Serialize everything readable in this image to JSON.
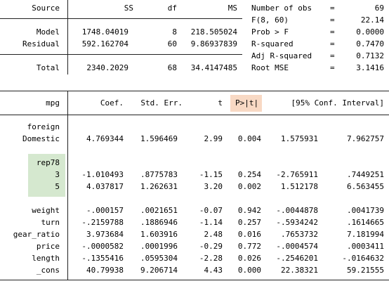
{
  "anova": {
    "headers": {
      "source": "Source",
      "ss": "SS",
      "df": "df",
      "ms": "MS"
    },
    "rows": [
      {
        "source": "Model",
        "ss": "1748.04019",
        "df": "8",
        "ms": "218.505024"
      },
      {
        "source": "Residual",
        "ss": "592.162704",
        "df": "60",
        "ms": "9.86937839"
      },
      {
        "source": "Total",
        "ss": "2340.2029",
        "df": "68",
        "ms": "34.4147485"
      }
    ]
  },
  "stats": [
    {
      "label": "Number of obs",
      "eq": "=",
      "value": "69"
    },
    {
      "label": "F(8, 60)",
      "eq": "=",
      "value": "22.14"
    },
    {
      "label": "Prob > F",
      "eq": "=",
      "value": "0.0000"
    },
    {
      "label": "R-squared",
      "eq": "=",
      "value": "0.7470"
    },
    {
      "label": "Adj R-squared",
      "eq": "=",
      "value": "0.7132"
    },
    {
      "label": "Root MSE",
      "eq": "=",
      "value": "3.1416"
    }
  ],
  "coef": {
    "headers": {
      "var": "mpg",
      "coef": "Coef.",
      "se": "Std. Err.",
      "t": "t",
      "p": "P>|t|",
      "ci": "[95% Conf. Interval]"
    },
    "foreign_group": "foreign",
    "rep78_group": "rep78",
    "rows": [
      {
        "name": "Domestic",
        "coef": "4.769344",
        "se": "1.596469",
        "t": "2.99",
        "p": "0.004",
        "lo": "1.575931",
        "hi": "7.962757"
      },
      {
        "name": "3",
        "coef": "-1.010493",
        "se": ".8775783",
        "t": "-1.15",
        "p": "0.254",
        "lo": "-2.765911",
        "hi": ".7449251"
      },
      {
        "name": "5",
        "coef": "4.037817",
        "se": "1.262631",
        "t": "3.20",
        "p": "0.002",
        "lo": "1.512178",
        "hi": "6.563455"
      },
      {
        "name": "weight",
        "coef": "-.000157",
        "se": ".0021651",
        "t": "-0.07",
        "p": "0.942",
        "lo": "-.0044878",
        "hi": ".0041739"
      },
      {
        "name": "turn",
        "coef": "-.2159788",
        "se": ".1886946",
        "t": "-1.14",
        "p": "0.257",
        "lo": "-.5934242",
        "hi": ".1614665"
      },
      {
        "name": "gear_ratio",
        "coef": "3.973684",
        "se": "1.603916",
        "t": "2.48",
        "p": "0.016",
        "lo": ".7653732",
        "hi": "7.181994"
      },
      {
        "name": "price",
        "coef": "-.0000582",
        "se": ".0001996",
        "t": "-0.29",
        "p": "0.772",
        "lo": "-.0004574",
        "hi": ".0003411"
      },
      {
        "name": "length",
        "coef": "-.1355416",
        "se": ".0595304",
        "t": "-2.28",
        "p": "0.026",
        "lo": "-.2546201",
        "hi": "-.0164632"
      },
      {
        "name": "_cons",
        "coef": "40.79938",
        "se": "9.206714",
        "t": "4.43",
        "p": "0.000",
        "lo": "22.38321",
        "hi": "59.21555"
      }
    ]
  },
  "colors": {
    "p_header_highlight": "#f8d9c4",
    "rep78_highlight": "#d5e8cf",
    "rule": "#222222"
  }
}
